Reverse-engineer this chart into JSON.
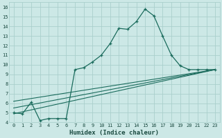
{
  "xlabel": "Humidex (Indice chaleur)",
  "xlim": [
    -0.5,
    23.5
  ],
  "ylim": [
    4,
    16.5
  ],
  "yticks": [
    4,
    5,
    6,
    7,
    8,
    9,
    10,
    11,
    12,
    13,
    14,
    15,
    16
  ],
  "xticks": [
    0,
    1,
    2,
    3,
    4,
    5,
    6,
    7,
    8,
    9,
    10,
    11,
    12,
    13,
    14,
    15,
    16,
    17,
    18,
    19,
    20,
    21,
    22,
    23
  ],
  "xtick_labels": [
    "0",
    "1",
    "2",
    "3",
    "4",
    "5",
    "6",
    "7",
    "8",
    "9",
    "10",
    "11",
    "12",
    "13",
    "14",
    "15",
    "16",
    "17",
    "18",
    "19",
    "20",
    "21",
    "22",
    "23"
  ],
  "bg_color": "#cce8e6",
  "line_color": "#1a6b5c",
  "grid_color": "#aacfcc",
  "curve1_x": [
    0,
    1,
    2,
    3,
    4,
    5,
    6,
    7,
    8,
    9,
    10,
    11,
    12,
    13,
    14,
    15,
    16,
    17,
    18,
    19,
    20,
    21,
    22,
    23
  ],
  "curve1_y": [
    5.0,
    4.9,
    6.1,
    4.2,
    4.4,
    4.4,
    4.4,
    9.5,
    9.7,
    10.3,
    11.0,
    12.2,
    13.8,
    13.7,
    14.5,
    15.8,
    15.1,
    13.0,
    11.0,
    9.9,
    9.5,
    9.5,
    9.5,
    9.5
  ],
  "curve2_x": [
    0,
    23
  ],
  "curve2_y": [
    6.2,
    9.5
  ],
  "curve3_x": [
    0,
    23
  ],
  "curve3_y": [
    5.5,
    9.5
  ],
  "curve4_x": [
    0,
    23
  ],
  "curve4_y": [
    4.9,
    9.5
  ],
  "lw_main": 0.9,
  "lw_ref": 0.8,
  "marker_size": 3.5,
  "tick_fontsize": 5.0,
  "xlabel_fontsize": 6.5
}
